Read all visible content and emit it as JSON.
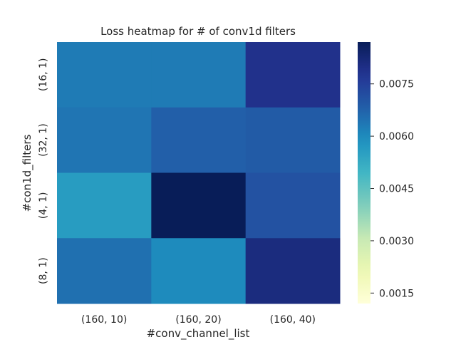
{
  "chart_data": {
    "type": "heatmap",
    "title": "Loss heatmap for # of conv1d filters",
    "xlabel": "#conv_channel_list",
    "ylabel": "#con1d_filters",
    "x_categories": [
      "(160, 10)",
      "(160, 20)",
      "(160, 40)"
    ],
    "y_categories": [
      "(16, 1)",
      "(32, 1)",
      "(4, 1)",
      "(8, 1)"
    ],
    "values": [
      [
        0.0063,
        0.0063,
        0.0079
      ],
      [
        0.0064,
        0.0068,
        0.0069
      ],
      [
        0.0056,
        0.0087,
        0.0071
      ],
      [
        0.0065,
        0.006,
        0.0081
      ]
    ],
    "colormap": "YlGnBu",
    "colorbar": {
      "range": [
        0.0012,
        0.0087
      ],
      "ticks": [
        0.0015,
        0.003,
        0.0045,
        0.006,
        0.0075
      ],
      "tick_labels": [
        "0.0015",
        "0.0030",
        "0.0045",
        "0.0060",
        "0.0075"
      ]
    },
    "grid": false
  }
}
